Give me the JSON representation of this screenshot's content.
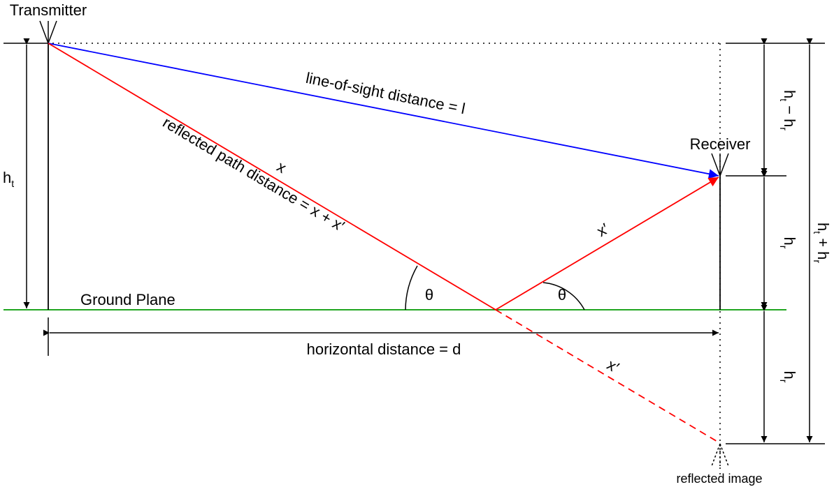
{
  "labels": {
    "transmitter": "Transmitter",
    "receiver": "Receiver",
    "los": "line-of-sight distance = l",
    "reflected_path": "reflected path distance = x + x′",
    "x": "x",
    "x_prime_upper": "x′",
    "x_prime_lower": "x′",
    "theta_left": "θ",
    "theta_right": "θ",
    "ground_plane": "Ground Plane",
    "horizontal": "horizontal distance = d",
    "reflected_image": "reflected image",
    "ht_main": "h",
    "ht_sub": "t",
    "htmhr_h1": "h",
    "htmhr_s1": "t",
    "htmhr_op": " − h",
    "htmhr_s2": "r",
    "hr_upper_main": "h",
    "hr_upper_sub": "r",
    "hr_lower_main": "h",
    "hr_lower_sub": "r",
    "htphr_h1": "h",
    "htphr_s1": "t",
    "htphr_op": " + h",
    "htphr_s2": "r"
  },
  "colors": {
    "line_of_sight": "#0000ff",
    "reflected_path": "#ff0000",
    "ground_plane": "#009900",
    "dimension": "#000000"
  }
}
